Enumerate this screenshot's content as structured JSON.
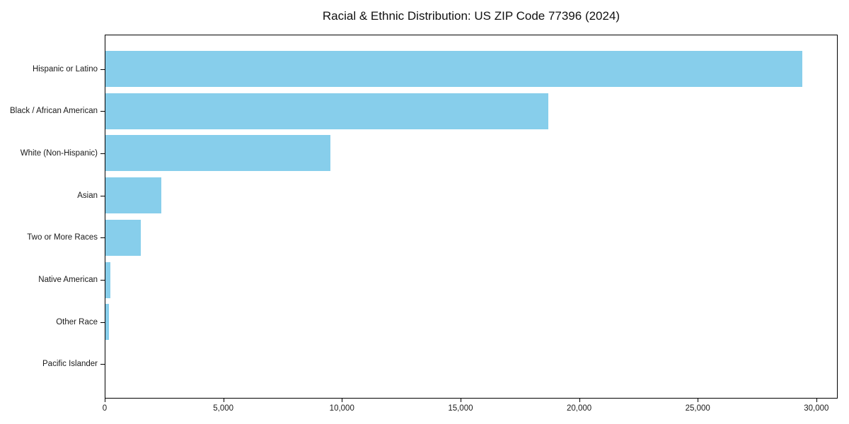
{
  "chart_data": {
    "type": "bar",
    "orientation": "horizontal",
    "title": "Racial & Ethnic Distribution: US ZIP Code 77396 (2024)",
    "categories": [
      "Hispanic or Latino",
      "Black / African American",
      "White (Non-Hispanic)",
      "Asian",
      "Two or More Races",
      "Native American",
      "Other Race",
      "Pacific Islander"
    ],
    "values": [
      29450,
      18700,
      9500,
      2350,
      1500,
      200,
      150,
      0
    ],
    "xlabel": "",
    "ylabel": "",
    "xlim": [
      0,
      30900
    ],
    "x_ticks": [
      0,
      5000,
      10000,
      15000,
      20000,
      25000,
      30000
    ],
    "x_tick_labels": [
      "0",
      "5,000",
      "10,000",
      "15,000",
      "20,000",
      "25,000",
      "30,000"
    ],
    "bar_color": "#87CEEB",
    "axis_color": "#000000",
    "grid": false,
    "legend_position": "none",
    "background_color": "#ffffff"
  }
}
